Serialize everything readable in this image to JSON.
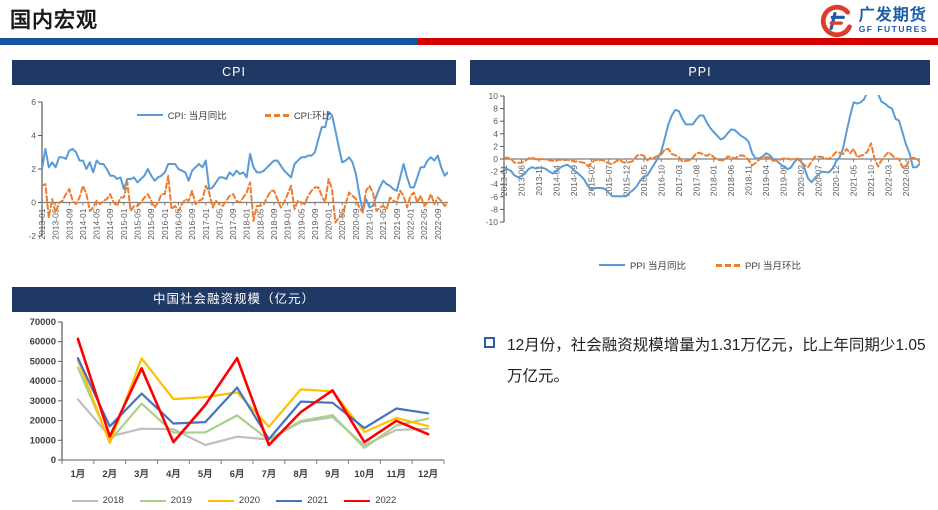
{
  "header": {
    "title": "国内宏观",
    "logo_name": "广发期货",
    "logo_sub": "GF FUTURES"
  },
  "colors": {
    "rule_blue": "#17549E",
    "rule_red": "#D40000",
    "panel_header_bg": "#1F3864",
    "series_blue": "#5B9BD5",
    "series_orange": "#ED7D31",
    "logo_blue": "#1B5CA8",
    "logo_red": "#DD3B2B"
  },
  "note": {
    "text": "12月份，社会融资规模增量为1.31万亿元，比上年同期少1.05万亿元。"
  },
  "chart_data": [
    {
      "id": "cpi",
      "type": "line",
      "title": "CPI",
      "n_points": 120,
      "ylim": [
        -2,
        6
      ],
      "yticks": [
        -2,
        0,
        2,
        4,
        6
      ],
      "grid": false,
      "legend_position": "top-center",
      "x_label_every": 4,
      "x_labels": [
        "2013-01",
        "2013-05",
        "2013-09",
        "2014-01",
        "2014-05",
        "2014-09",
        "2015-01",
        "2015-05",
        "2015-09",
        "2016-01",
        "2016-05",
        "2016-09",
        "2017-01",
        "2017-05",
        "2017-09",
        "2018-01",
        "2018-05",
        "2018-09",
        "2019-01",
        "2019-05",
        "2019-09",
        "2020-01",
        "2020-05",
        "2020-09",
        "2021-01",
        "2021-05",
        "2021-09",
        "2022-01",
        "2022-05",
        "2022-09"
      ],
      "series": [
        {
          "name": "CPI: 当月同比",
          "style": "solid",
          "color": "#5B9BD5",
          "values": [
            2.0,
            3.2,
            2.1,
            2.4,
            2.1,
            2.7,
            2.7,
            2.6,
            3.1,
            3.2,
            3.0,
            2.5,
            2.5,
            2.0,
            2.4,
            1.8,
            2.5,
            2.3,
            2.3,
            2.0,
            1.6,
            1.6,
            1.4,
            1.5,
            0.8,
            1.4,
            1.4,
            1.5,
            1.2,
            1.4,
            1.6,
            2.0,
            1.6,
            1.3,
            1.5,
            1.6,
            1.8,
            2.3,
            2.3,
            2.3,
            2.0,
            1.9,
            1.8,
            1.3,
            1.9,
            2.1,
            2.3,
            2.1,
            2.5,
            0.8,
            0.9,
            1.2,
            1.5,
            1.5,
            1.4,
            1.8,
            1.6,
            1.9,
            1.7,
            1.8,
            1.5,
            2.9,
            2.1,
            1.8,
            1.8,
            1.9,
            2.1,
            2.3,
            2.5,
            2.5,
            2.2,
            1.9,
            1.7,
            1.5,
            2.3,
            2.5,
            2.7,
            2.7,
            2.8,
            2.8,
            3.0,
            3.8,
            4.5,
            4.5,
            5.4,
            5.2,
            4.3,
            3.3,
            2.4,
            2.5,
            2.7,
            2.4,
            1.7,
            0.5,
            -0.5,
            0.2,
            -0.3,
            -0.2,
            0.4,
            0.9,
            1.3,
            1.1,
            1.0,
            0.8,
            0.7,
            1.5,
            2.3,
            1.5,
            0.9,
            0.9,
            1.5,
            2.1,
            2.1,
            2.5,
            2.7,
            2.5,
            2.8,
            2.1,
            1.6,
            1.8
          ]
        },
        {
          "name": "CPI:环比",
          "style": "dashed",
          "color": "#ED7D31",
          "values": [
            1.0,
            1.1,
            -0.9,
            0.2,
            -0.6,
            0.0,
            0.1,
            0.5,
            0.8,
            0.1,
            -0.1,
            0.3,
            1.0,
            0.5,
            -0.5,
            -0.3,
            0.1,
            -0.1,
            0.1,
            0.2,
            0.5,
            0.0,
            -0.2,
            0.3,
            0.3,
            1.2,
            -0.5,
            -0.2,
            -0.2,
            0.0,
            0.3,
            0.5,
            0.1,
            -0.3,
            0.0,
            0.5,
            0.5,
            1.6,
            -0.4,
            -0.2,
            -0.5,
            -0.1,
            0.2,
            0.1,
            0.7,
            -0.1,
            0.1,
            0.2,
            1.0,
            0.6,
            -0.3,
            0.1,
            -0.1,
            -0.2,
            0.1,
            0.4,
            0.5,
            0.1,
            0.0,
            0.3,
            0.6,
            1.2,
            -1.1,
            -0.2,
            -0.2,
            -0.1,
            0.3,
            0.7,
            0.7,
            0.2,
            -0.3,
            0.0,
            0.5,
            1.0,
            -0.4,
            0.1,
            0.0,
            -0.1,
            0.4,
            0.7,
            0.9,
            0.9,
            0.4,
            0.0,
            1.4,
            0.8,
            -1.2,
            -0.9,
            -0.8,
            -0.1,
            0.6,
            0.4,
            0.2,
            -0.3,
            -0.6,
            0.7,
            1.0,
            0.6,
            -0.5,
            -0.3,
            -0.2,
            -0.4,
            0.3,
            0.1,
            0.0,
            0.7,
            0.4,
            -0.3,
            0.4,
            0.6,
            0.0,
            0.4,
            -0.2,
            0.0,
            0.5,
            -0.1,
            0.3,
            0.1,
            -0.2,
            0.0
          ]
        }
      ]
    },
    {
      "id": "ppi",
      "type": "line",
      "title": "PPI",
      "n_points": 120,
      "ylim": [
        -10,
        10
      ],
      "yticks": [
        -10,
        -8,
        -6,
        -4,
        -2,
        0,
        2,
        4,
        6,
        8,
        10
      ],
      "grid": false,
      "legend_position": "bottom-center",
      "x_label_every": 5,
      "x_labels": [
        "2013-01",
        "2013-06",
        "2013-11",
        "2014-04",
        "2014-09",
        "2015-02",
        "2015-07",
        "2015-12",
        "2016-05",
        "2016-10",
        "2017-03",
        "2017-08",
        "2018-01",
        "2018-06",
        "2018-11",
        "2019-04",
        "2019-09",
        "2020-02",
        "2020-07",
        "2020-12",
        "2021-05",
        "2021-10",
        "2022-03",
        "2022-08"
      ],
      "series": [
        {
          "name": "PPI 当月同比",
          "style": "solid",
          "color": "#5B9BD5",
          "values": [
            -1.6,
            -1.6,
            -1.9,
            -2.6,
            -2.9,
            -2.7,
            -2.3,
            -1.6,
            -1.3,
            -1.5,
            -1.4,
            -1.4,
            -1.6,
            -2.0,
            -2.3,
            -2.0,
            -1.4,
            -1.1,
            -0.9,
            -1.2,
            -1.8,
            -2.2,
            -2.7,
            -3.3,
            -4.3,
            -4.8,
            -4.6,
            -4.6,
            -4.6,
            -4.8,
            -5.4,
            -5.9,
            -5.9,
            -5.9,
            -5.9,
            -5.9,
            -5.3,
            -4.9,
            -4.3,
            -3.4,
            -2.8,
            -2.6,
            -1.7,
            -0.8,
            0.1,
            1.2,
            3.3,
            5.5,
            6.9,
            7.8,
            7.6,
            6.4,
            5.5,
            5.5,
            5.5,
            6.3,
            6.9,
            6.9,
            5.8,
            4.9,
            4.3,
            3.7,
            3.1,
            3.4,
            4.1,
            4.7,
            4.6,
            4.1,
            3.6,
            3.3,
            2.7,
            0.9,
            0.1,
            0.1,
            0.4,
            0.9,
            0.6,
            0.0,
            -0.3,
            -0.8,
            -1.2,
            -1.6,
            -1.4,
            -0.5,
            0.1,
            -0.4,
            -1.5,
            -3.1,
            -3.7,
            -3.0,
            -2.4,
            -2.0,
            -2.1,
            -2.1,
            -1.5,
            -0.4,
            0.3,
            1.7,
            4.4,
            6.8,
            9.0,
            8.8,
            9.0,
            9.5,
            10.7,
            13.5,
            12.9,
            10.3,
            9.1,
            8.8,
            8.3,
            8.0,
            6.4,
            6.1,
            4.2,
            2.3,
            0.9,
            -1.3,
            -1.3,
            -0.7
          ]
        },
        {
          "name": "PPI 当月环比",
          "style": "dashed",
          "color": "#ED7D31",
          "values": [
            0.2,
            0.2,
            0.0,
            -0.6,
            -0.6,
            -0.6,
            -0.3,
            0.1,
            0.2,
            0.0,
            -0.1,
            0.0,
            -0.1,
            -0.2,
            -0.3,
            -0.2,
            -0.1,
            -0.2,
            -0.1,
            -0.2,
            -0.4,
            -0.4,
            -0.5,
            -0.6,
            -1.1,
            -0.7,
            -0.1,
            -0.3,
            -0.1,
            -0.4,
            -0.7,
            -0.8,
            -0.4,
            -0.1,
            -0.5,
            -0.6,
            -0.5,
            -0.3,
            0.5,
            0.7,
            0.5,
            -0.2,
            0.2,
            0.2,
            0.5,
            0.7,
            1.5,
            1.6,
            0.8,
            0.6,
            0.3,
            -0.4,
            -0.3,
            -0.2,
            0.2,
            0.9,
            1.0,
            0.7,
            0.5,
            0.8,
            0.3,
            -0.1,
            -0.2,
            -0.2,
            0.4,
            0.3,
            0.1,
            0.4,
            0.6,
            0.4,
            -0.2,
            -1.0,
            -0.6,
            -0.1,
            0.1,
            0.3,
            0.2,
            -0.3,
            -0.2,
            -0.1,
            0.1,
            0.1,
            -0.1,
            0.0,
            0.0,
            -0.5,
            -1.0,
            -1.3,
            -0.4,
            0.4,
            0.4,
            0.3,
            0.1,
            0.0,
            0.5,
            1.1,
            1.0,
            0.8,
            1.6,
            0.9,
            1.6,
            0.3,
            0.5,
            0.7,
            1.2,
            2.5,
            0.0,
            -1.2,
            -0.2,
            0.5,
            1.1,
            0.6,
            0.1,
            0.0,
            -1.3,
            -1.2,
            -0.1,
            0.2,
            0.1,
            -0.5
          ]
        }
      ]
    },
    {
      "id": "socfin",
      "type": "line",
      "title": "中国社会融资规模（亿元）",
      "categories": [
        "1月",
        "2月",
        "3月",
        "4月",
        "5月",
        "6月",
        "7月",
        "8月",
        "9月",
        "10月",
        "11月",
        "12月"
      ],
      "ylim": [
        0,
        70000
      ],
      "yticks": [
        0,
        10000,
        20000,
        30000,
        40000,
        50000,
        60000,
        70000
      ],
      "grid": false,
      "legend_position": "bottom-center",
      "series": [
        {
          "name": "2018",
          "style": "solid",
          "color": "#BFBFBF",
          "width": 2.2,
          "values": [
            30800,
            11900,
            15900,
            15600,
            7600,
            11800,
            10400,
            19300,
            21700,
            7400,
            15200,
            15900
          ]
        },
        {
          "name": "2019",
          "style": "solid",
          "color": "#A9D18E",
          "width": 2.2,
          "values": [
            46800,
            9700,
            28600,
            13900,
            14000,
            22600,
            10100,
            19800,
            22700,
            6200,
            17500,
            21000
          ]
        },
        {
          "name": "2020",
          "style": "solid",
          "color": "#FFC000",
          "width": 2.2,
          "values": [
            50700,
            8600,
            51600,
            30900,
            31900,
            34300,
            16900,
            35800,
            34800,
            14200,
            21300,
            17200
          ]
        },
        {
          "name": "2021",
          "style": "solid",
          "color": "#4472C4",
          "width": 2.2,
          "values": [
            51700,
            17100,
            33700,
            18500,
            19200,
            36700,
            10600,
            29600,
            29000,
            16200,
            26100,
            23700
          ]
        },
        {
          "name": "2022",
          "style": "solid",
          "color": "#FF0000",
          "width": 2.6,
          "values": [
            61500,
            11900,
            46500,
            9100,
            27900,
            51700,
            7600,
            24300,
            35300,
            9100,
            19900,
            13100
          ]
        }
      ]
    }
  ]
}
